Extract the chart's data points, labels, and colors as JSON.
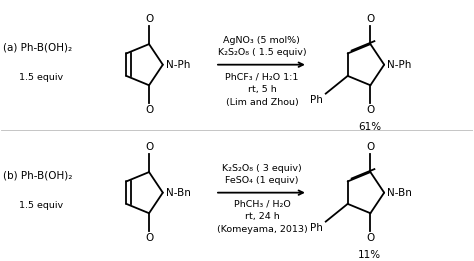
{
  "bg_color": "#ffffff",
  "fig_width": 4.74,
  "fig_height": 2.61,
  "dpi": 100,
  "reaction_a": {
    "label": "(a) Ph-B(OH)₂",
    "reagent1_sub": "1.5 equiv",
    "conditions_above": [
      "AgNO₃ (5 mol%)",
      "K₂S₂O₈ ( 1.5 equiv)"
    ],
    "conditions_below": [
      "PhCF₃ / H₂O 1:1",
      "rt, 5 h",
      "(Lim and Zhou)"
    ],
    "n_label": "Ph",
    "yield": "61%"
  },
  "reaction_b": {
    "label": "(b) Ph-B(OH)₂",
    "reagent1_sub": "1.5 equiv",
    "conditions_above": [
      "K₂S₂O₈ ( 3 equiv)",
      "FeSO₄ (1 equiv)"
    ],
    "conditions_below": [
      "PhCH₃ / H₂O",
      "rt, 24 h",
      "(Komeyama, 2013)"
    ],
    "n_label": "Bn",
    "yield": "11%"
  }
}
